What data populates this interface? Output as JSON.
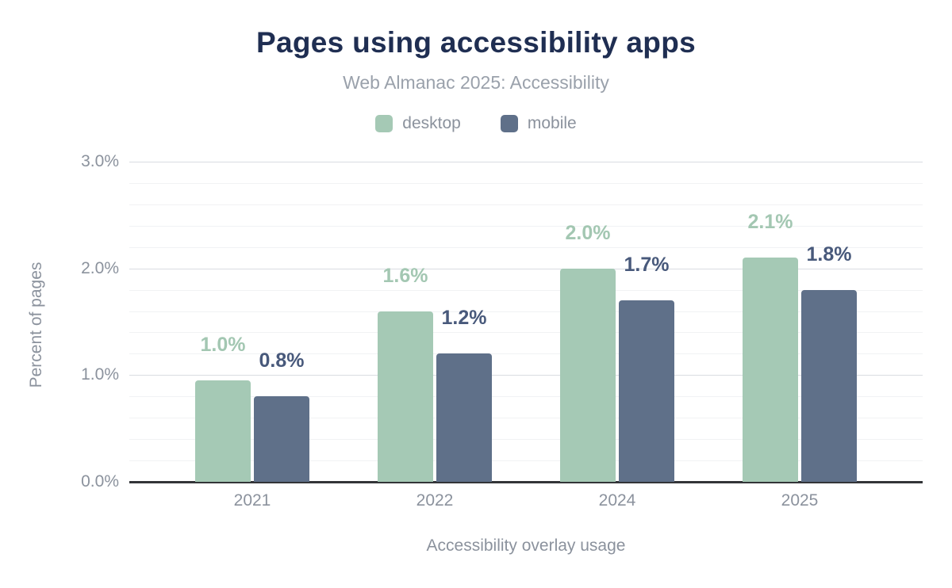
{
  "chart_data": {
    "type": "bar",
    "title": "Pages using accessibility apps",
    "subtitle": "Web Almanac 2025: Accessibility",
    "categories": [
      "2021",
      "2022",
      "2024",
      "2025"
    ],
    "series": [
      {
        "name": "desktop",
        "color": "#a5c9b5",
        "label_color": "#a3c7b2",
        "values": [
          0.95,
          1.6,
          2.0,
          2.1
        ],
        "labels": [
          "1.0%",
          "1.6%",
          "2.0%",
          "2.1%"
        ]
      },
      {
        "name": "mobile",
        "color": "#5f7089",
        "label_color": "#48597b",
        "values": [
          0.8,
          1.2,
          1.7,
          1.8
        ],
        "labels": [
          "0.8%",
          "1.2%",
          "1.7%",
          "1.8%"
        ]
      }
    ],
    "xlabel": "Accessibility overlay usage",
    "ylabel": "Percent of pages",
    "ylim": [
      0,
      3
    ],
    "yticks": [
      {
        "label": "0.0%",
        "value": 0
      },
      {
        "label": "1.0%",
        "value": 1
      },
      {
        "label": "2.0%",
        "value": 2
      },
      {
        "label": "3.0%",
        "value": 3
      }
    ],
    "grid": {
      "minor_step": 0.2,
      "major_step": 1.0,
      "shown": true
    },
    "legend_position": "top-center",
    "colors": {
      "title": "#1f2e52",
      "subtitle": "#9aa1ab",
      "axis_text": "#8b929d",
      "gridline_major": "#d9dce1",
      "gridline_minor": "#f1f2f4",
      "baseline": "#333538",
      "background": "#ffffff"
    }
  }
}
